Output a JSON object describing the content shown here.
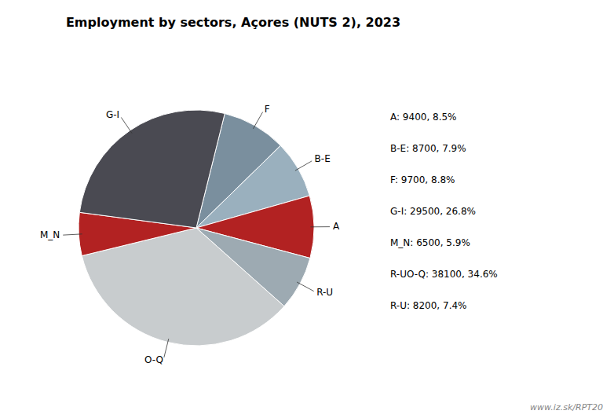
{
  "chart_data": {
    "type": "pie",
    "title": "Employment by sectors, Açores (NUTS 2), 2023",
    "categories": [
      "F",
      "B-E",
      "A",
      "R-U",
      "O-Q",
      "M_N",
      "G-I"
    ],
    "values": [
      9700,
      8700,
      9400,
      8200,
      38100,
      6500,
      29500
    ],
    "colors": [
      "#7a8f9e",
      "#9ab0be",
      "#b22222",
      "#9daab2",
      "#c8ccce",
      "#b22222",
      "#4a4a52"
    ],
    "annotations": [
      "A: 9400, 8.5%",
      "B-E: 8700, 7.9%",
      "F: 9700, 8.8%",
      "G-I: 29500, 26.8%",
      "M_N: 6500, 5.9%",
      "R-UO-Q: 38100, 34.6%",
      "R-U: 8200, 7.4%",
      "www.iz.sk/RPT20"
    ]
  }
}
